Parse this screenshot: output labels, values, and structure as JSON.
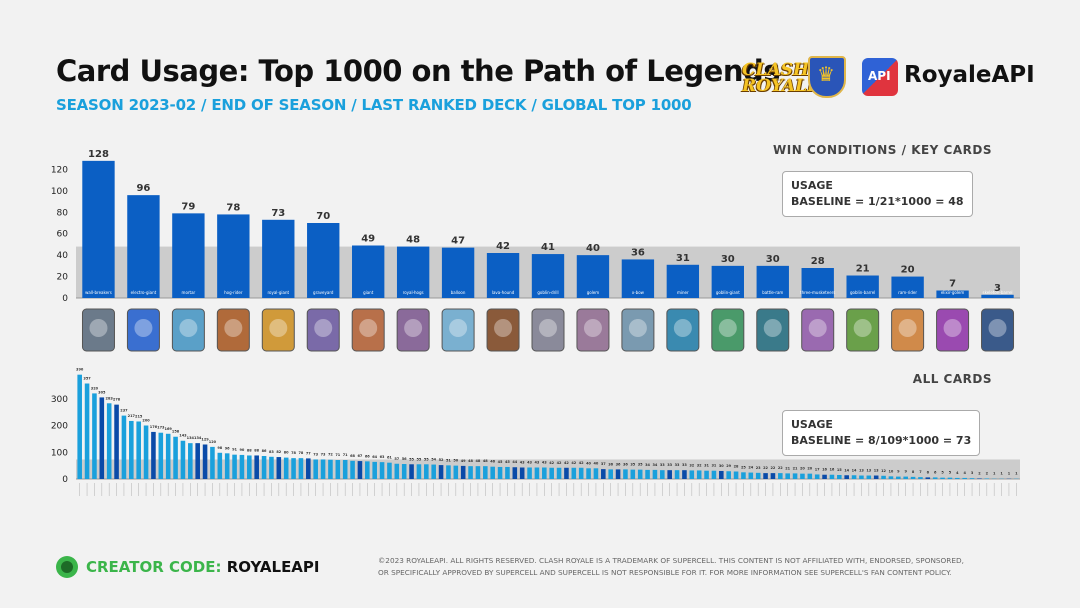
{
  "header": {
    "title": "Card Usage: Top 1000 on the Path of Legends",
    "subtitle": "SEASON 2023-02 / END OF SEASON / LAST RANKED DECK / GLOBAL TOP 1000",
    "game_logo_text": "CLASH ROYALE",
    "brand_name": "RoyaleAPI",
    "brand_icon_text": "API"
  },
  "colors": {
    "bar": "#0b5fc4",
    "bar_light": "#1aa0dc",
    "bar_dark": "#0a4aa8",
    "baseline_band": "#cccccc",
    "accent": "#1aa0dc",
    "creator": "#3bb54a"
  },
  "chart_data": [
    {
      "type": "bar",
      "title": "WIN CONDITIONS / KEY CARDS",
      "ylim": [
        0,
        140
      ],
      "yticks": [
        0,
        20,
        40,
        60,
        80,
        100,
        120
      ],
      "baseline": 48,
      "annotation": [
        "USAGE",
        "BASELINE = 1/21*1000 = 48"
      ],
      "categories": [
        "wall-breakers",
        "electro-giant",
        "mortar",
        "hog-rider",
        "royal-giant",
        "graveyard",
        "giant",
        "royal-hogs",
        "balloon",
        "lava-hound",
        "goblin-drill",
        "golem",
        "x-bow",
        "miner",
        "goblin-giant",
        "battle-ram",
        "three-musketeers",
        "goblin-barrel",
        "ram-rider",
        "elixir-golem",
        "skeleton-barrel"
      ],
      "values": [
        128,
        96,
        79,
        78,
        73,
        70,
        49,
        48,
        47,
        42,
        41,
        40,
        36,
        31,
        30,
        30,
        28,
        21,
        20,
        7,
        3
      ],
      "card_icons": [
        "wall-breakers-icon",
        "electro-giant-icon",
        "mortar-icon",
        "hog-rider-icon",
        "royal-giant-icon",
        "graveyard-icon",
        "giant-icon",
        "royal-hogs-icon",
        "balloon-icon",
        "lava-hound-icon",
        "goblin-drill-icon",
        "golem-icon",
        "x-bow-icon",
        "miner-icon",
        "goblin-giant-icon",
        "battle-ram-icon",
        "three-musketeers-icon",
        "goblin-barrel-icon",
        "ram-rider-icon",
        "elixir-golem-icon",
        "skeleton-barrel-icon"
      ]
    },
    {
      "type": "bar",
      "title": "ALL CARDS",
      "ylim": [
        0,
        400
      ],
      "yticks": [
        0,
        100,
        200,
        300
      ],
      "baseline": 73,
      "annotation": [
        "USAGE",
        "BASELINE = 8/109*1000 = 73"
      ],
      "values": [
        390,
        357,
        320,
        305,
        283,
        278,
        237,
        217,
        215,
        200,
        176,
        173,
        169,
        158,
        143,
        134,
        134,
        129,
        120,
        98,
        96,
        91,
        90,
        88,
        88,
        86,
        83,
        82,
        80,
        78,
        78,
        77,
        73,
        73,
        72,
        71,
        71,
        68,
        67,
        66,
        64,
        63,
        61,
        57,
        56,
        55,
        55,
        55,
        54,
        52,
        51,
        50,
        49,
        48,
        48,
        48,
        46,
        45,
        45,
        44,
        43,
        43,
        43,
        43,
        42,
        42,
        42,
        42,
        42,
        40,
        40,
        37,
        36,
        36,
        36,
        35,
        35,
        34,
        34,
        33,
        33,
        33,
        33,
        32,
        32,
        31,
        31,
        30,
        29,
        28,
        25,
        24,
        23,
        22,
        22,
        22,
        21,
        21,
        20,
        20,
        17,
        16,
        16,
        15,
        14,
        14,
        13,
        13,
        13,
        12,
        10,
        9,
        9,
        8,
        7,
        6,
        6,
        5,
        5,
        4,
        4,
        3,
        2,
        2,
        1,
        1,
        1,
        1
      ]
    }
  ],
  "footer": {
    "creator_label": "CREATOR CODE:",
    "creator_code": "ROYALEAPI",
    "legal_1": "©2023 ROYALEAPI. ALL RIGHTS RESERVED. CLASH ROYALE IS A TRADEMARK OF SUPERCELL. THIS CONTENT IS NOT AFFILIATED WITH, ENDORSED, SPONSORED,",
    "legal_2": "OR SPECIFICALLY APPROVED BY SUPERCELL AND SUPERCELL IS NOT RESPONSIBLE FOR IT. FOR MORE INFORMATION SEE SUPERCELL'S FAN CONTENT POLICY."
  }
}
